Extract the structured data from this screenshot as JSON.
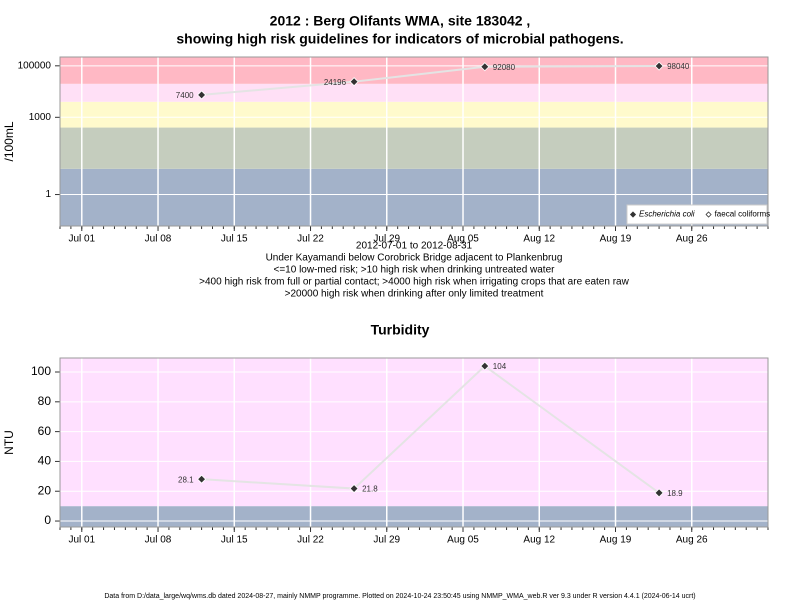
{
  "chart_data": [
    {
      "type": "line",
      "title": [
        "2012 : Berg Olifants WMA, site 183042 ,",
        "showing high risk guidelines for indicators of microbial pathogens."
      ],
      "subtitle": [
        "2012-07-01 to 2012-08-31",
        "Under Kayamandi below Corobrick Bridge adjacent to Plankenbrug",
        "<=10 low-med risk; >10 high risk when drinking untreated water",
        ">400 high risk from full or partial contact; >4000 high risk when irrigating crops that are eaten raw",
        ">20000 high risk when drinking after only limited treatment"
      ],
      "ylabel": "/100mL",
      "x": [
        "2012-07-12",
        "2012-07-26",
        "2012-08-07",
        "2012-08-23"
      ],
      "series": [
        {
          "name": "Escherichia coli",
          "color": "#333333",
          "values": [
            7400,
            24196,
            92080,
            98040
          ]
        },
        {
          "name": "faecal coliforms",
          "color": "#333333",
          "values": [
            null,
            null,
            null,
            null
          ]
        }
      ],
      "xlim": [
        "2012-06-29",
        "2012-09-02"
      ],
      "xticks": [
        {
          "value": "2012-07-01",
          "label": "Jul 01"
        },
        {
          "value": "2012-07-08",
          "label": "Jul 08"
        },
        {
          "value": "2012-07-15",
          "label": "Jul 15"
        },
        {
          "value": "2012-07-22",
          "label": "Jul 22"
        },
        {
          "value": "2012-07-29",
          "label": "Jul 29"
        },
        {
          "value": "2012-08-05",
          "label": "Aug 05"
        },
        {
          "value": "2012-08-12",
          "label": "Aug 12"
        },
        {
          "value": "2012-08-19",
          "label": "Aug 19"
        },
        {
          "value": "2012-08-26",
          "label": "Aug 26"
        }
      ],
      "ylim": [
        0.06,
        220000
      ],
      "yticks": [
        1,
        1000,
        100000
      ],
      "log": true,
      "grid": true,
      "thresholds": [
        10,
        400,
        4000,
        20000
      ],
      "band_colors": [
        "#a3b2c9",
        "#c5cdbe",
        "#fffacc",
        "#ffe0f6",
        "#ffb8c4"
      ],
      "line_color": "#e4e4e4",
      "legend": "bottom right"
    },
    {
      "type": "line",
      "title": [
        "Turbidity"
      ],
      "ylabel": "NTU",
      "x": [
        "2012-07-12",
        "2012-07-26",
        "2012-08-07",
        "2012-08-23"
      ],
      "series": [
        {
          "color": "#333333",
          "values": [
            28.1,
            21.8,
            104,
            18.9
          ]
        }
      ],
      "xlim": [
        "2012-06-29",
        "2012-09-02"
      ],
      "xticks": [
        {
          "value": "2012-07-01",
          "label": "Jul 01"
        },
        {
          "value": "2012-07-08",
          "label": "Jul 08"
        },
        {
          "value": "2012-07-15",
          "label": "Jul 15"
        },
        {
          "value": "2012-07-22",
          "label": "Jul 22"
        },
        {
          "value": "2012-07-29",
          "label": "Jul 29"
        },
        {
          "value": "2012-08-05",
          "label": "Aug 05"
        },
        {
          "value": "2012-08-12",
          "label": "Aug 12"
        },
        {
          "value": "2012-08-19",
          "label": "Aug 19"
        },
        {
          "value": "2012-08-26",
          "label": "Aug 26"
        }
      ],
      "ylim": [
        -4,
        109.4
      ],
      "yticks": [
        0,
        20,
        40,
        60,
        80,
        100
      ],
      "log": false,
      "grid": true,
      "thresholds": [
        10
      ],
      "band_colors": [
        "#a3b2c9",
        "#ffe0ff"
      ],
      "line_color": "#e4e4e4"
    }
  ],
  "footer": "Data from D:/data_large/wq/wms.db dated 2024-08-27, mainly NMMP programme. Plotted on 2024-10-24 23:50:45 using NMMP_WMA_web.R ver 9.3 under R version 4.4.1 (2024-06-14 ucrt)"
}
